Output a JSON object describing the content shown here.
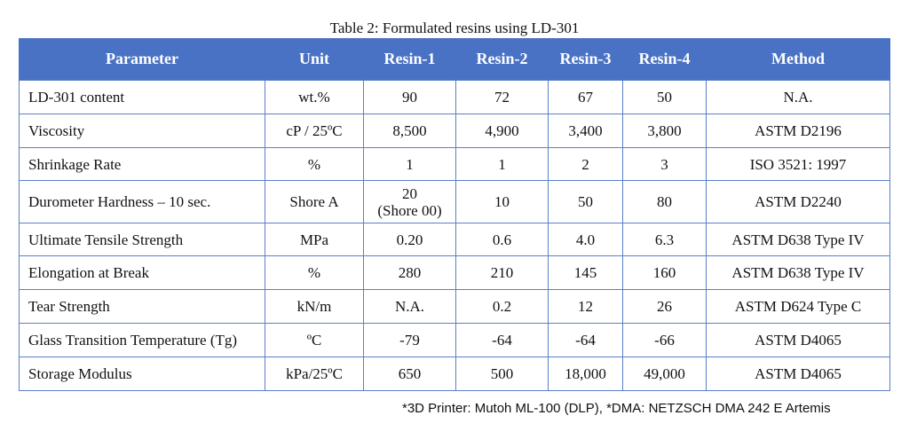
{
  "caption": "Table 2: Formulated resins using LD-301",
  "headers": [
    "Parameter",
    "Unit",
    "Resin-1",
    "Resin-2",
    "Resin-3",
    "Resin-4",
    "Method"
  ],
  "rows": [
    {
      "parameter": "LD-301 content",
      "unit": "wt.%",
      "r1": "90",
      "r1_note": "",
      "r2": "72",
      "r3": "67",
      "r4": "50",
      "method": "N.A."
    },
    {
      "parameter": "Viscosity",
      "unit": "cP / 25ºC",
      "r1": "8,500",
      "r1_note": "",
      "r2": "4,900",
      "r3": "3,400",
      "r4": "3,800",
      "method": "ASTM D2196"
    },
    {
      "parameter": "Shrinkage Rate",
      "unit": "%",
      "r1": "1",
      "r1_note": "",
      "r2": "1",
      "r3": "2",
      "r4": "3",
      "method": "ISO 3521: 1997"
    },
    {
      "parameter": "Durometer Hardness – 10 sec.",
      "unit": "Shore A",
      "r1": "20",
      "r1_note": "(Shore 00)",
      "r2": "10",
      "r3": "50",
      "r4": "80",
      "method": "ASTM D2240"
    },
    {
      "parameter": "Ultimate Tensile Strength",
      "unit": "MPa",
      "r1": "0.20",
      "r1_note": "",
      "r2": "0.6",
      "r3": "4.0",
      "r4": "6.3",
      "method": "ASTM D638 Type IV"
    },
    {
      "parameter": "Elongation at Break",
      "unit": "%",
      "r1": "280",
      "r1_note": "",
      "r2": "210",
      "r3": "145",
      "r4": "160",
      "method": "ASTM D638 Type IV"
    },
    {
      "parameter": "Tear Strength",
      "unit": "kN/m",
      "r1": "N.A.",
      "r1_note": "",
      "r2": "0.2",
      "r3": "12",
      "r4": "26",
      "method": "ASTM D624 Type C"
    },
    {
      "parameter": "Glass Transition Temperature (Tg)",
      "unit": "ºC",
      "r1": "-79",
      "r1_note": "",
      "r2": "-64",
      "r3": "-64",
      "r4": "-66",
      "method": "ASTM D4065"
    },
    {
      "parameter": "Storage Modulus",
      "unit": "kPa/25ºC",
      "r1": "650",
      "r1_note": "",
      "r2": "500",
      "r3": "18,000",
      "r4": "49,000",
      "method": "ASTM D4065"
    }
  ],
  "footnote": "*3D Printer: Mutoh ML-100 (DLP), *DMA: NETZSCH DMA 242 E Artemis",
  "colors": {
    "header_bg": "#4a72c4",
    "header_text": "#ffffff",
    "grid": "#5b7fc9"
  }
}
